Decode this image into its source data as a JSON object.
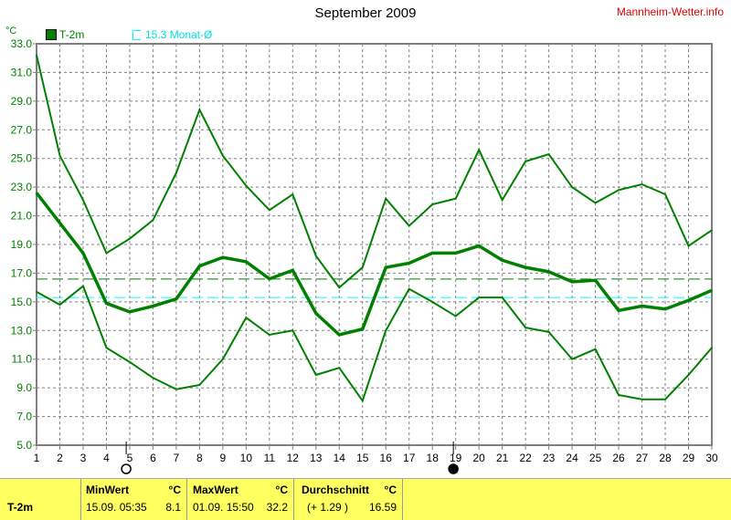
{
  "title": "September 2009",
  "brand": "Mannheim-Wetter.info",
  "colors": {
    "series": "#008000",
    "monthly_avg": "#00ffff",
    "grid": "#808080",
    "table_bg": "#ffff60"
  },
  "legend": {
    "series_label": "T-2m",
    "monthly_label": "15.3 Monat-Ø"
  },
  "moon_phases": [
    {
      "day": 4.85,
      "phase": "new-moon"
    },
    {
      "day": 18.9,
      "phase": "full-moon"
    }
  ],
  "chart_data": {
    "type": "line",
    "ylabel": "°C",
    "ylim": [
      5,
      33
    ],
    "yticks": [
      "33.0",
      "31.0",
      "29.0",
      "27.0",
      "25.0",
      "23.0",
      "21.0",
      "19.0",
      "17.0",
      "15.0",
      "13.0",
      "11.0",
      "9.0",
      "7.0",
      "5.0"
    ],
    "x": [
      1,
      2,
      3,
      4,
      5,
      6,
      7,
      8,
      9,
      10,
      11,
      12,
      13,
      14,
      15,
      16,
      17,
      18,
      19,
      20,
      21,
      22,
      23,
      24,
      25,
      26,
      27,
      28,
      29,
      30
    ],
    "grid": true,
    "series": [
      {
        "role": "max",
        "values": [
          32.2,
          25.2,
          22.1,
          18.4,
          19.4,
          20.7,
          24.0,
          28.4,
          25.2,
          23.1,
          21.4,
          22.5,
          18.2,
          16.0,
          17.4,
          22.2,
          20.3,
          21.8,
          22.2,
          25.6,
          22.1,
          24.8,
          25.3,
          23.0,
          21.9,
          22.8,
          23.2,
          22.5,
          18.9,
          20.0
        ]
      },
      {
        "role": "mean",
        "values": [
          22.6,
          20.5,
          18.4,
          14.9,
          14.3,
          14.7,
          15.2,
          17.5,
          18.1,
          17.8,
          16.6,
          17.2,
          14.2,
          12.7,
          13.1,
          17.4,
          17.7,
          18.4,
          18.4,
          18.9,
          17.9,
          17.4,
          17.1,
          16.4,
          16.5,
          14.4,
          14.7,
          14.5,
          15.1,
          15.8
        ]
      },
      {
        "role": "min",
        "values": [
          15.7,
          14.8,
          16.1,
          11.8,
          10.8,
          9.7,
          8.9,
          9.2,
          11.0,
          13.9,
          12.7,
          13.0,
          9.9,
          10.4,
          8.1,
          13.0,
          15.9,
          15.0,
          14.0,
          15.3,
          15.3,
          13.2,
          12.9,
          11.0,
          11.7,
          8.5,
          8.2,
          8.2,
          9.9,
          11.8
        ]
      }
    ],
    "reference_lines": [
      {
        "value": 16.59,
        "color": "#008000"
      },
      {
        "value": 15.3,
        "color": "#00ffff"
      }
    ]
  },
  "table": {
    "row_label": "T-2m",
    "min": {
      "header": "MinWert",
      "unit": "°C",
      "time": "15.09.  05:35",
      "value": "8.1"
    },
    "max": {
      "header": "MaxWert",
      "unit": "°C",
      "time": "01.09.  15:50",
      "value": "32.2"
    },
    "avg": {
      "header": "Durchschnitt",
      "unit": "°C",
      "delta": "(+ 1.29 )",
      "value": "16.59"
    }
  }
}
